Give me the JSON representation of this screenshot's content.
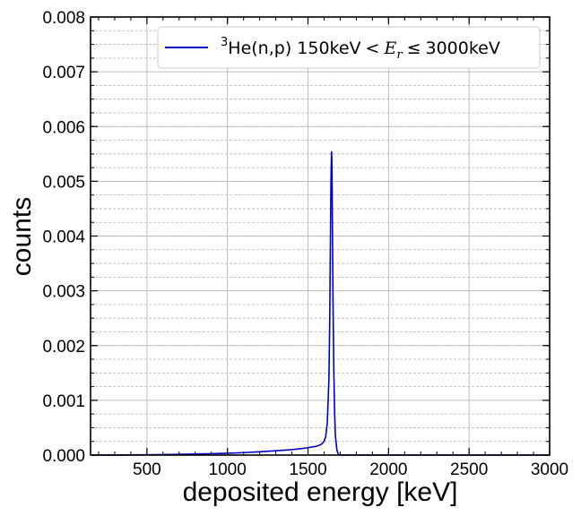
{
  "chart_data": {
    "type": "line",
    "title": "",
    "xlabel": "deposited energy [keV]",
    "ylabel": "counts",
    "xlim": [
      150,
      3000
    ],
    "ylim": [
      0,
      0.008
    ],
    "x_ticks": [
      500,
      1000,
      1500,
      2000,
      2500,
      3000
    ],
    "x_tick_labels": [
      "500",
      "1000",
      "1500",
      "2000",
      "2500",
      "3000"
    ],
    "y_ticks": [
      0,
      0.001,
      0.002,
      0.003,
      0.004,
      0.005,
      0.006,
      0.007,
      0.008
    ],
    "y_tick_labels": [
      "0.000",
      "0.001",
      "0.002",
      "0.003",
      "0.004",
      "0.005",
      "0.006",
      "0.007",
      "0.008"
    ],
    "grid": true,
    "minor_grid": true,
    "legend_position": "top-right",
    "series": [
      {
        "name": "³He(n,p) 150keV < Er ≤ 3000keV",
        "legend": {
          "sup": "3",
          "label": "He(n,p) 150keV",
          "lt": "<",
          "var": "E",
          "sub": "r",
          "leq": "≤",
          "tail": "3000keV"
        },
        "color": "#0000cc",
        "x": [
          150,
          300,
          500,
          700,
          900,
          1000,
          1100,
          1200,
          1300,
          1400,
          1450,
          1500,
          1550,
          1580,
          1600,
          1610,
          1620,
          1630,
          1635,
          1640,
          1643,
          1646,
          1648,
          1650,
          1652,
          1655,
          1660,
          1665,
          1670,
          1680,
          1690,
          1700,
          1720,
          1800,
          2000,
          2500,
          3000
        ],
        "y": [
          0,
          1e-06,
          5e-06,
          1.4e-05,
          2.6e-05,
          3.3e-05,
          4.5e-05,
          6e-05,
          7.8e-05,
          0.0001,
          0.000115,
          0.000135,
          0.00016,
          0.00019,
          0.00025,
          0.00034,
          0.0006,
          0.0014,
          0.0025,
          0.0042,
          0.0051,
          0.00554,
          0.0054,
          0.0048,
          0.004,
          0.0029,
          0.0016,
          0.0008,
          0.00035,
          8e-05,
          1e-05,
          0,
          0,
          0,
          0,
          0,
          0
        ]
      }
    ]
  }
}
